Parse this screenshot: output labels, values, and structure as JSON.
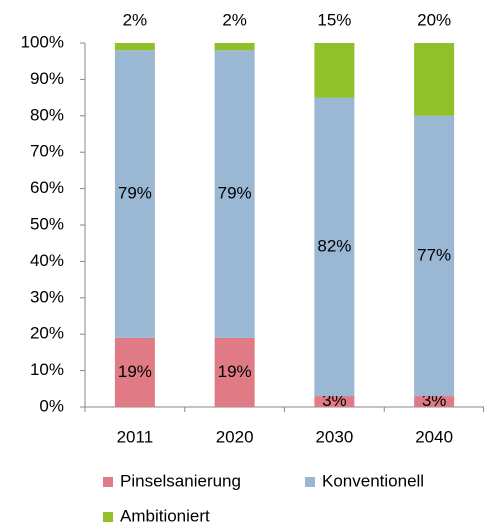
{
  "chart_data": {
    "type": "stacked_bar",
    "categories": [
      "2011",
      "2020",
      "2030",
      "2040"
    ],
    "series": [
      {
        "name": "Pinselsanierung",
        "color": "#e07b85",
        "values": [
          19,
          19,
          3,
          3
        ],
        "value_labels": [
          "19%",
          "19%",
          "3%",
          "3%"
        ]
      },
      {
        "name": "Konventionell",
        "color": "#9ab7d3",
        "values": [
          79,
          79,
          82,
          77
        ],
        "value_labels": [
          "79%",
          "79%",
          "82%",
          "77%"
        ]
      },
      {
        "name": "Ambitioniert",
        "color": "#92c02a",
        "values": [
          2,
          2,
          15,
          20
        ],
        "value_labels": [
          "2%",
          "2%",
          "15%",
          "20%"
        ]
      }
    ],
    "ylim": [
      0,
      100
    ],
    "yticks": [
      {
        "value": 0,
        "label": "0%"
      },
      {
        "value": 10,
        "label": "10%"
      },
      {
        "value": 20,
        "label": "20%"
      },
      {
        "value": 30,
        "label": "30%"
      },
      {
        "value": 40,
        "label": "40%"
      },
      {
        "value": 50,
        "label": "50%"
      },
      {
        "value": 60,
        "label": "60%"
      },
      {
        "value": 70,
        "label": "70%"
      },
      {
        "value": 80,
        "label": "80%"
      },
      {
        "value": 90,
        "label": "90%"
      },
      {
        "value": 100,
        "label": "100%"
      }
    ],
    "grid": false
  }
}
